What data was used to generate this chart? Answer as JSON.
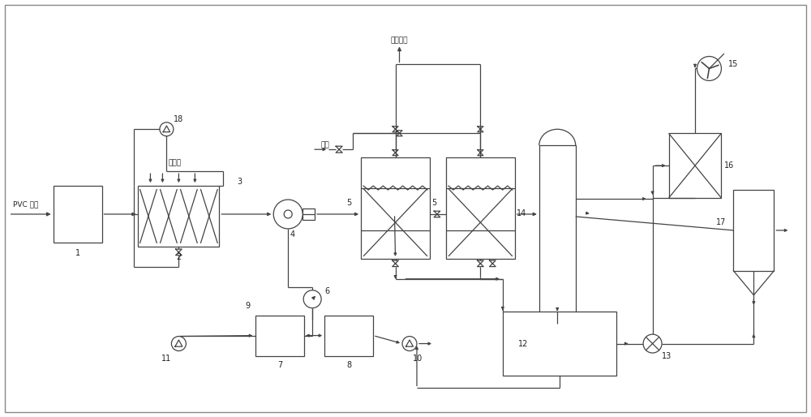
{
  "bg": "#ffffff",
  "lc": "#444444",
  "tc": "#222222",
  "lw": 0.9,
  "fs": 6.5,
  "pvc_label": "PVC 废气",
  "steam_label": "蒸汽",
  "clean_air_label": "洁净空气",
  "circ_water_label": "循环水",
  "nums": {
    "1": "1",
    "2": "2",
    "3": "3",
    "4": "4",
    "5a": "5",
    "5b": "5",
    "6": "6",
    "7": "7",
    "8": "8",
    "9": "9",
    "10": "10",
    "11": "11",
    "12": "12",
    "13": "13",
    "14": "14",
    "15": "15",
    "16": "16",
    "17": "17",
    "18": "18"
  },
  "coord": {
    "xlim": [
      0,
      100
    ],
    "ylim": [
      0,
      51.4
    ]
  }
}
